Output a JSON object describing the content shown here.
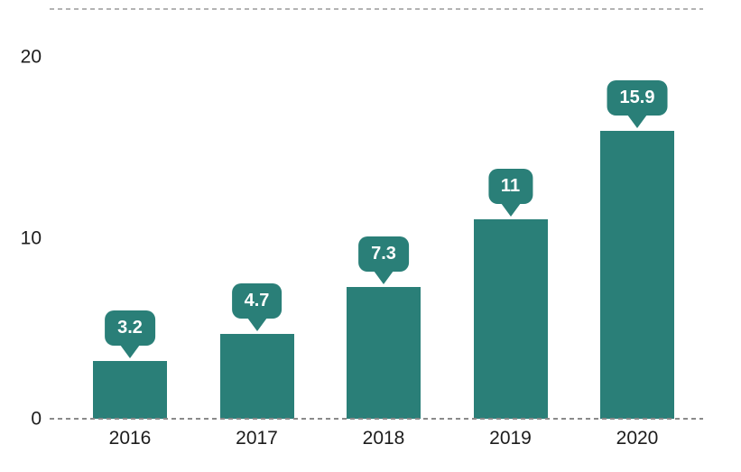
{
  "chart_data": {
    "type": "bar",
    "categories": [
      "2016",
      "2017",
      "2018",
      "2019",
      "2020"
    ],
    "values": [
      3.2,
      4.7,
      7.3,
      11,
      15.9
    ],
    "bar_labels": [
      "3.2",
      "4.7",
      "7.3",
      "11",
      "15.9"
    ],
    "title": "",
    "xlabel": "",
    "ylabel": "",
    "ylim": [
      0,
      20
    ],
    "yticks": [
      {
        "value": 0,
        "label": "0"
      },
      {
        "value": 10,
        "label": "10"
      },
      {
        "value": 20,
        "label": "20"
      }
    ],
    "grid": "dashed horizontal line at y=0 and faint dashed top border; no other gridlines",
    "legend": "none",
    "label_style": "rounded speech-bubble callout with downward pointer above each bar"
  },
  "colors": {
    "bar": "#2a7f78",
    "bubble_bg": "#2a7f78",
    "bubble_text": "#ffffff",
    "axis_text": "#1c1c1c",
    "zero_line": "#8a8a8a",
    "top_line": "#b3b3b3",
    "background": "#ffffff"
  }
}
